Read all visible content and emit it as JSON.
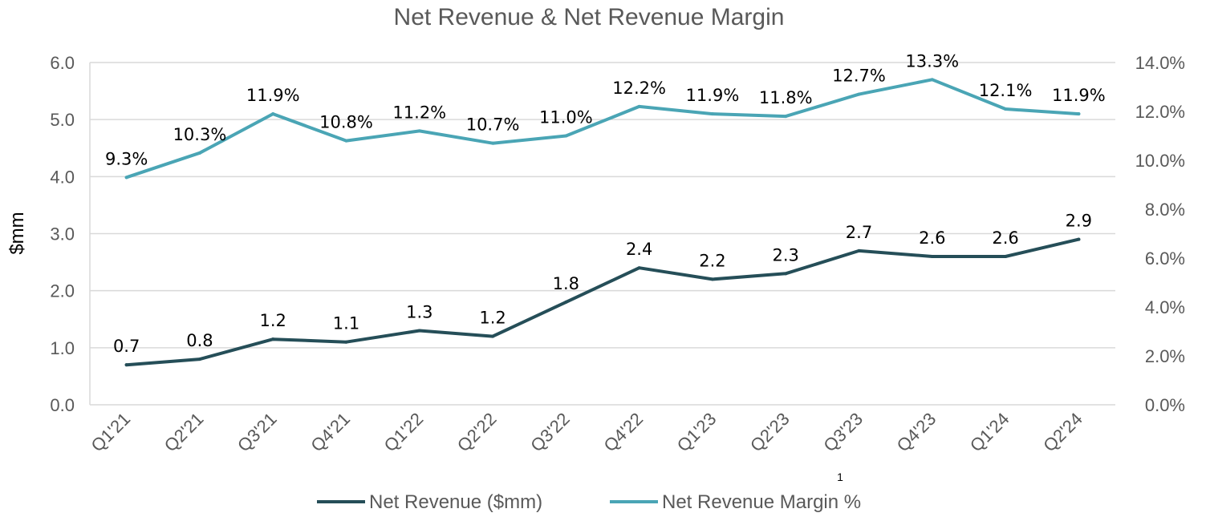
{
  "chart_data": {
    "type": "line",
    "title": "Net Revenue & Net Revenue Margin",
    "ylabel": "$mm",
    "y_ticks": [
      "0.0",
      "1.0",
      "2.0",
      "3.0",
      "4.0",
      "5.0",
      "6.0"
    ],
    "y2_ticks": [
      "0.0%",
      "2.0%",
      "4.0%",
      "6.0%",
      "8.0%",
      "10.0%",
      "12.0%",
      "14.0%"
    ],
    "ylim": [
      0,
      6
    ],
    "y2lim": [
      0,
      14
    ],
    "grid": true,
    "legend_position": "bottom",
    "categories": [
      "Q1'21",
      "Q2'21",
      "Q3'21",
      "Q4'21",
      "Q1'22",
      "Q2'22",
      "Q3'22",
      "Q4'22",
      "Q1'23",
      "Q2'23",
      "Q3'23",
      "Q4'23",
      "Q1'24",
      "Q2'24"
    ],
    "series": [
      {
        "name": "Net Revenue ($mm)",
        "axis": "left",
        "color": "#254e58",
        "values": [
          0.7,
          0.8,
          1.15,
          1.1,
          1.3,
          1.2,
          1.8,
          2.4,
          2.2,
          2.3,
          2.7,
          2.6,
          2.6,
          2.9
        ],
        "labels": [
          "0.7",
          "0.8",
          "1.2",
          "1.1",
          "1.3",
          "1.2",
          "1.8",
          "2.4",
          "2.2",
          "2.3",
          "2.7",
          "2.6",
          "2.6",
          "2.9"
        ]
      },
      {
        "name": "Net Revenue Margin %",
        "axis": "right",
        "color": "#4aa5b5",
        "values": [
          9.3,
          10.3,
          11.9,
          10.8,
          11.2,
          10.7,
          11.0,
          12.2,
          11.9,
          11.8,
          12.7,
          13.3,
          12.1,
          11.9
        ],
        "labels": [
          "9.3%",
          "10.3%",
          "11.9%",
          "10.8%",
          "11.2%",
          "10.7%",
          "11.0%",
          "12.2%",
          "11.9%",
          "11.8%",
          "12.7%",
          "13.3%",
          "12.1%",
          "11.9%"
        ]
      }
    ],
    "footnote": "1"
  }
}
